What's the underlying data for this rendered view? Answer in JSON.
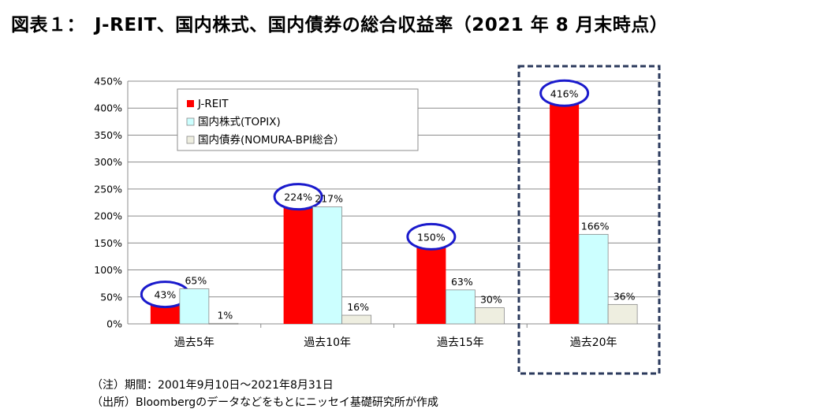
{
  "title": "図表１：　J-REIT、国内株式、国内債券の総合収益率（2021 年 8 月末時点）",
  "notes": [
    "（注）期間：2001年9月10日～2021年8月31日",
    "（出所）Bloombergのデータなどをもとにニッセイ基礎研究所が作成"
  ],
  "colors": {
    "jreit": "#ff0000",
    "topix": "#ccffff",
    "nomura": "#eeeee0",
    "highlight_circle": "#1a1acc",
    "highlight_box": "#2b3a5c"
  },
  "chart_data": {
    "type": "bar",
    "categories": [
      "過去5年",
      "過去10年",
      "過去15年",
      "過去20年"
    ],
    "series": [
      {
        "name": "J-REIT",
        "values": [
          43,
          224,
          150,
          416
        ],
        "labels": [
          "43%",
          "224%",
          "150%",
          "416%"
        ]
      },
      {
        "name": "国内株式(TOPIX)",
        "values": [
          65,
          217,
          63,
          166
        ],
        "labels": [
          "65%",
          "217%",
          "63%",
          "166%"
        ]
      },
      {
        "name": "国内債券(NOMURA-BPI総合）",
        "values": [
          1,
          16,
          30,
          36
        ],
        "labels": [
          "1%",
          "16%",
          "30%",
          "36%"
        ]
      }
    ],
    "ylim": [
      0,
      450
    ],
    "yticks": [
      "0%",
      "50%",
      "100%",
      "150%",
      "200%",
      "250%",
      "300%",
      "350%",
      "400%",
      "450%"
    ],
    "ylabel": "",
    "xlabel": "",
    "grid": true,
    "legend": "top-left",
    "highlight_category": "過去20年",
    "circled_series": "J-REIT"
  }
}
